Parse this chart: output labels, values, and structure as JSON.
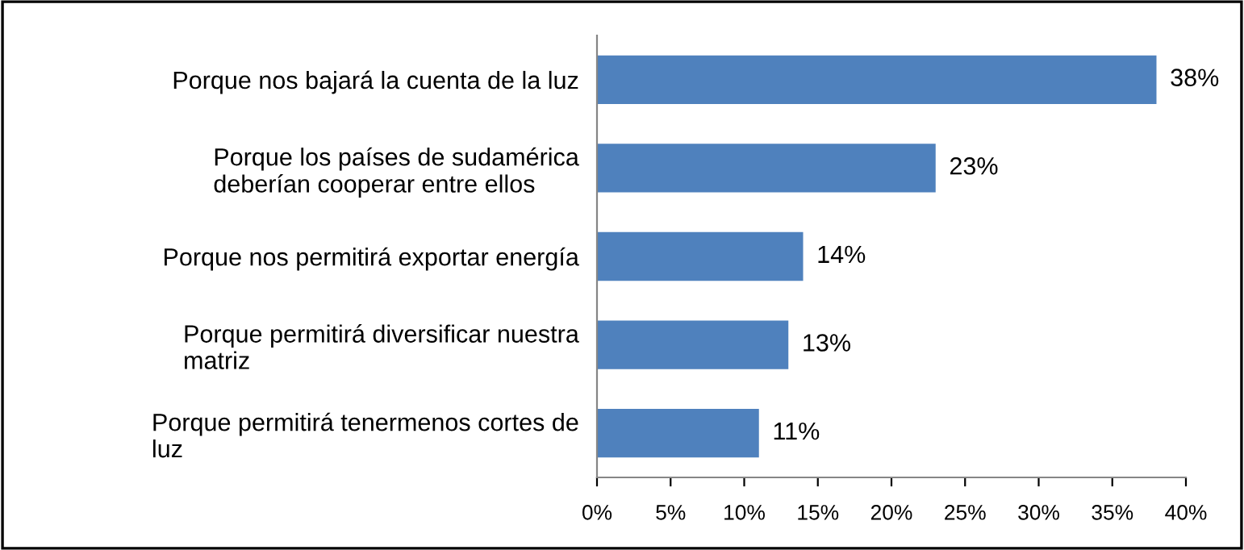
{
  "chart_data": {
    "type": "bar",
    "orientation": "horizontal",
    "categories": [
      "Porque nos bajará la cuenta de la luz",
      "Porque los países de sudamérica\ndeberían cooperar entre ellos",
      "Porque nos permitirá exportar energía",
      "Porque permitirá diversificar nuestra\nmatriz",
      "Porque permitirá tenermenos cortes de\nluz"
    ],
    "values": [
      38,
      23,
      14,
      13,
      11
    ],
    "value_labels": [
      "38%",
      "23%",
      "14%",
      "13%",
      "11%"
    ],
    "color": "#4f81bd",
    "xlim": [
      0,
      40
    ],
    "xticks": [
      {
        "value": 0,
        "label": "0%"
      },
      {
        "value": 5,
        "label": "5%"
      },
      {
        "value": 10,
        "label": "10%"
      },
      {
        "value": 15,
        "label": "15%"
      },
      {
        "value": 20,
        "label": "20%"
      },
      {
        "value": 25,
        "label": "25%"
      },
      {
        "value": 30,
        "label": "30%"
      },
      {
        "value": 35,
        "label": "35%"
      },
      {
        "value": 40,
        "label": "40%"
      }
    ],
    "grid": false,
    "legend": false
  }
}
